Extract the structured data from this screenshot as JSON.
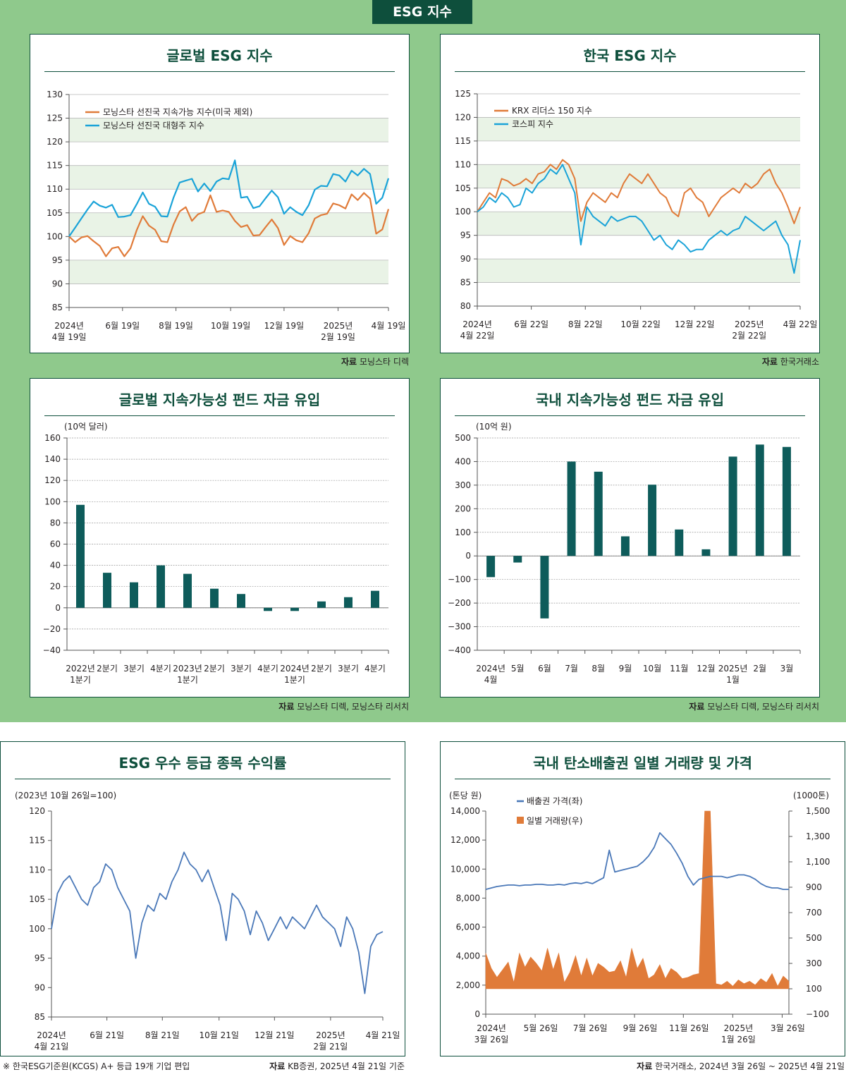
{
  "banner": "ESG 지수",
  "panels": {
    "p1": {
      "title": "글로벌 ESG 지수",
      "source_label": "자료",
      "source_text": "모닝스타 디렉"
    },
    "p2": {
      "title": "한국 ESG 지수",
      "source_label": "자료",
      "source_text": "한국거래소"
    },
    "p3": {
      "title": "글로벌 지속가능성 펀드 자금 유입",
      "source_label": "자료",
      "source_text": "모닝스타 디렉, 모닝스타 리서치"
    },
    "p4": {
      "title": "국내 지속가능성 펀드 자금 유입",
      "source_label": "자료",
      "source_text": "모닝스타 디렉, 모닝스타 리서치"
    },
    "p5": {
      "title": "ESG 우수 등급 종목 수익률",
      "source_label": "자료",
      "source_text": "KB증권, 2025년 4월 21일 기준",
      "footnote": "※ 한국ESG기준원(KCGS) A+ 등급 19개 기업 편입"
    },
    "p6": {
      "title": "국내 탄소배출권 일별 거래량 및 가격",
      "source_label": "자료",
      "source_text": "한국거래소, 2024년 3월 26일 ~ 2025년 4월 21일"
    }
  },
  "colors": {
    "orange": "#e07b39",
    "blue": "#1aa3d8",
    "teal": "#0e5c5b",
    "steel": "#4a78b8",
    "band": "#e9f3e6",
    "green_bg": "#8fc98c"
  },
  "chart_data": [
    {
      "id": "c1",
      "type": "line",
      "ylim": [
        85,
        130
      ],
      "yticks": [
        85,
        90,
        95,
        100,
        105,
        110,
        115,
        120,
        125,
        130
      ],
      "xlim": [
        0,
        52
      ],
      "xticks": [
        {
          "x": 0,
          "label": [
            "2024년",
            "4월 19일"
          ]
        },
        {
          "x": 8.7,
          "label": [
            "6월 19일"
          ]
        },
        {
          "x": 17.4,
          "label": [
            "8월 19일"
          ]
        },
        {
          "x": 26.3,
          "label": [
            "10월 19일"
          ]
        },
        {
          "x": 35,
          "label": [
            "12월 19일"
          ]
        },
        {
          "x": 43.8,
          "label": [
            "2025년",
            "2월 19일"
          ]
        },
        {
          "x": 52,
          "label": [
            "4월 19일"
          ]
        }
      ],
      "legend": "top-left",
      "series": [
        {
          "name": "모닝스타 선진국 지속가능 지수(미국 제외)",
          "color": "orange",
          "values": [
            100,
            98.8,
            99.8,
            100.1,
            99,
            98,
            95.8,
            97.5,
            97.8,
            95.8,
            97.5,
            101.3,
            104.3,
            102.3,
            101.4,
            99,
            98.8,
            102.5,
            105.3,
            106.2,
            103.3,
            104.7,
            105.2,
            108.7,
            105.2,
            105.5,
            105.2,
            103.3,
            102,
            102.4,
            100.2,
            100.3,
            102,
            103.6,
            101.8,
            98.2,
            100.1,
            99.2,
            98.8,
            100.7,
            103.8,
            104.5,
            104.8,
            107,
            106.6,
            105.9,
            108.9,
            107.7,
            109.2,
            108,
            100.6,
            101.5,
            105.8
          ]
        },
        {
          "name": "모닝스타 선진국 대형주 지수",
          "color": "blue",
          "values": [
            100,
            101.9,
            103.8,
            105.7,
            107.4,
            106.5,
            106.1,
            106.7,
            104.1,
            104.2,
            104.5,
            106.8,
            109.3,
            106.9,
            106.3,
            104.3,
            104.2,
            108.2,
            111.4,
            111.8,
            112.2,
            109.5,
            111.2,
            109.6,
            111.6,
            112.3,
            112.1,
            116.1,
            108.2,
            108.4,
            106,
            106.4,
            108.1,
            109.7,
            108.3,
            104.8,
            106.2,
            105.2,
            104.5,
            106.6,
            109.9,
            110.7,
            110.6,
            113.2,
            112.9,
            111.6,
            113.9,
            112.9,
            114.3,
            113.2,
            106.9,
            108.2,
            112.3
          ]
        }
      ]
    },
    {
      "id": "c2",
      "type": "line",
      "ylim": [
        80,
        125
      ],
      "yticks": [
        80,
        85,
        90,
        95,
        100,
        105,
        110,
        115,
        120,
        125
      ],
      "xlim": [
        0,
        52
      ],
      "xticks": [
        {
          "x": 0,
          "label": [
            "2024년",
            "4월 22일"
          ]
        },
        {
          "x": 8.7,
          "label": [
            "6월 22일"
          ]
        },
        {
          "x": 17.4,
          "label": [
            "8월 22일"
          ]
        },
        {
          "x": 26.3,
          "label": [
            "10월 22일"
          ]
        },
        {
          "x": 35,
          "label": [
            "12월 22일"
          ]
        },
        {
          "x": 43.8,
          "label": [
            "2025년",
            "2월 22일"
          ]
        },
        {
          "x": 52,
          "label": [
            "4월 22일"
          ]
        }
      ],
      "legend": "top-left",
      "series": [
        {
          "name": "KRX 리더스 150 지수",
          "color": "orange",
          "values": [
            100,
            102,
            104,
            103,
            107,
            106.5,
            105.5,
            106,
            107,
            106,
            108,
            108.5,
            110,
            109,
            111,
            110,
            107,
            98,
            102,
            104,
            103,
            102,
            104,
            103,
            106,
            108,
            107,
            106,
            108,
            106,
            104,
            103,
            100,
            99,
            104,
            105,
            103,
            102,
            99,
            101,
            103,
            104,
            105,
            104,
            106,
            105,
            106,
            108,
            109,
            106,
            104,
            101,
            97.5,
            101
          ]
        },
        {
          "name": "코스피 지수",
          "color": "blue",
          "values": [
            100,
            101,
            103,
            102,
            104,
            103,
            101,
            101.5,
            105,
            104,
            106,
            107,
            109,
            108,
            110,
            107,
            104,
            93,
            101,
            99,
            98,
            97,
            99,
            98,
            98.5,
            99,
            99,
            98,
            96,
            94,
            95,
            93,
            92,
            94,
            93,
            91.5,
            92,
            92,
            94,
            95,
            96,
            95,
            96,
            96.5,
            99,
            98,
            97,
            96,
            97,
            98,
            95,
            93,
            87,
            94
          ]
        }
      ]
    },
    {
      "id": "c3",
      "type": "bar",
      "unit": "(10억 달러)",
      "ylim": [
        -40,
        160
      ],
      "yticks": [
        -40,
        -20,
        0,
        20,
        40,
        60,
        80,
        100,
        120,
        140,
        160
      ],
      "categories": [
        [
          "2022년",
          "1분기"
        ],
        [
          "2분기"
        ],
        [
          "3분기"
        ],
        [
          "4분기"
        ],
        [
          "2023년",
          "1분기"
        ],
        [
          "2분기"
        ],
        [
          "3분기"
        ],
        [
          "4분기"
        ],
        [
          "2024년",
          "1분기"
        ],
        [
          "2분기"
        ],
        [
          "3분기"
        ],
        [
          "4분기"
        ]
      ],
      "values": [
        97,
        33,
        24,
        40,
        32,
        18,
        13,
        -3,
        -3,
        6,
        10,
        16
      ]
    },
    {
      "id": "c4",
      "type": "bar",
      "unit": "(10억 원)",
      "ylim": [
        -400,
        500
      ],
      "yticks": [
        -400,
        -300,
        -200,
        -100,
        0,
        100,
        200,
        300,
        400,
        500
      ],
      "categories": [
        [
          "2024년",
          "4월"
        ],
        [
          "5월"
        ],
        [
          "6월"
        ],
        [
          "7월"
        ],
        [
          "8월"
        ],
        [
          "9월"
        ],
        [
          "10월"
        ],
        [
          "11월"
        ],
        [
          "12월"
        ],
        [
          "2025년",
          "1월"
        ],
        [
          "2월"
        ],
        [
          "3월"
        ]
      ],
      "values": [
        -90,
        -28,
        -265,
        400,
        357,
        83,
        302,
        112,
        28,
        421,
        472,
        462
      ]
    },
    {
      "id": "c5",
      "type": "line",
      "unit": "(2023년 10월 26일=100)",
      "ylim": [
        85,
        120
      ],
      "yticks": [
        85,
        90,
        95,
        100,
        105,
        110,
        115,
        120
      ],
      "xlim": [
        0,
        52
      ],
      "xticks": [
        {
          "x": 0,
          "label": [
            "2024년",
            "4월 21일"
          ]
        },
        {
          "x": 8.7,
          "label": [
            "6월 21일"
          ]
        },
        {
          "x": 17.4,
          "label": [
            "8월 21일"
          ]
        },
        {
          "x": 26.3,
          "label": [
            "10월 21일"
          ]
        },
        {
          "x": 35,
          "label": [
            "12월 21일"
          ]
        },
        {
          "x": 43.8,
          "label": [
            "2025년",
            "2월 21일"
          ]
        },
        {
          "x": 52,
          "label": [
            "4월 21일"
          ]
        }
      ],
      "series": [
        {
          "name": "",
          "color": "steel",
          "values": [
            100,
            106,
            108,
            109,
            107,
            105,
            104,
            107,
            108,
            111,
            110,
            107,
            105,
            103,
            95,
            101,
            104,
            103,
            106,
            105,
            108,
            110,
            113,
            111,
            110,
            108,
            110,
            107,
            104,
            98,
            106,
            105,
            103,
            99,
            103,
            101,
            98,
            100,
            102,
            100,
            102,
            101,
            100,
            102,
            104,
            102,
            101,
            100,
            97,
            102,
            100,
            96,
            89,
            97,
            99,
            99.5
          ]
        }
      ]
    },
    {
      "id": "c6",
      "type": "bar+line",
      "y_left": {
        "unit": "(톤당 원)",
        "lim": [
          0,
          14000
        ],
        "ticks": [
          "0",
          "2,000",
          "4,000",
          "6,000",
          "8,000",
          "10,000",
          "12,000",
          "14,000"
        ]
      },
      "y_right": {
        "unit": "(1000톤)",
        "lim": [
          -100,
          1500
        ],
        "ticks": [
          "-100",
          "100",
          "300",
          "500",
          "700",
          "900",
          "1,100",
          "1,300",
          "1,500"
        ]
      },
      "xlim": [
        0,
        54
      ],
      "xticks": [
        {
          "x": 0,
          "label": [
            "2024년",
            "3월 26일"
          ]
        },
        {
          "x": 8.8,
          "label": [
            "5월 26일"
          ]
        },
        {
          "x": 17.6,
          "label": [
            "7월 26일"
          ]
        },
        {
          "x": 26.5,
          "label": [
            "9월 26일"
          ]
        },
        {
          "x": 35.2,
          "label": [
            "11월 26일"
          ]
        },
        {
          "x": 44,
          "label": [
            "2025년",
            "1월 26일"
          ]
        },
        {
          "x": 52.8,
          "label": [
            "3월 26일"
          ]
        }
      ],
      "legend": "top-left",
      "series": [
        {
          "name": "배출권 가격(좌)",
          "color": "steel",
          "axis": "left",
          "values": [
            8600,
            8700,
            8800,
            8850,
            8900,
            8900,
            8850,
            8900,
            8900,
            8950,
            8950,
            8900,
            8900,
            8950,
            8900,
            9000,
            9050,
            9000,
            9100,
            9000,
            9200,
            9400,
            11300,
            9800,
            9900,
            10000,
            10100,
            10200,
            10500,
            10900,
            11500,
            12500,
            12100,
            11700,
            11100,
            10400,
            9500,
            8900,
            9300,
            9400,
            9500,
            9500,
            9500,
            9400,
            9500,
            9600,
            9600,
            9500,
            9300,
            9000,
            8800,
            8700,
            8700,
            8600,
            8600
          ]
        },
        {
          "name": "일별 거래량(우)",
          "color": "orange",
          "axis": "right",
          "values": [
            380,
            260,
            190,
            250,
            310,
            150,
            380,
            270,
            350,
            300,
            240,
            420,
            250,
            380,
            150,
            230,
            360,
            200,
            340,
            200,
            300,
            270,
            230,
            240,
            320,
            190,
            420,
            260,
            340,
            180,
            210,
            290,
            180,
            260,
            230,
            180,
            190,
            210,
            220,
            1500,
            1500,
            140,
            130,
            160,
            120,
            170,
            140,
            160,
            130,
            180,
            150,
            220,
            120,
            200,
            160
          ]
        }
      ]
    }
  ]
}
